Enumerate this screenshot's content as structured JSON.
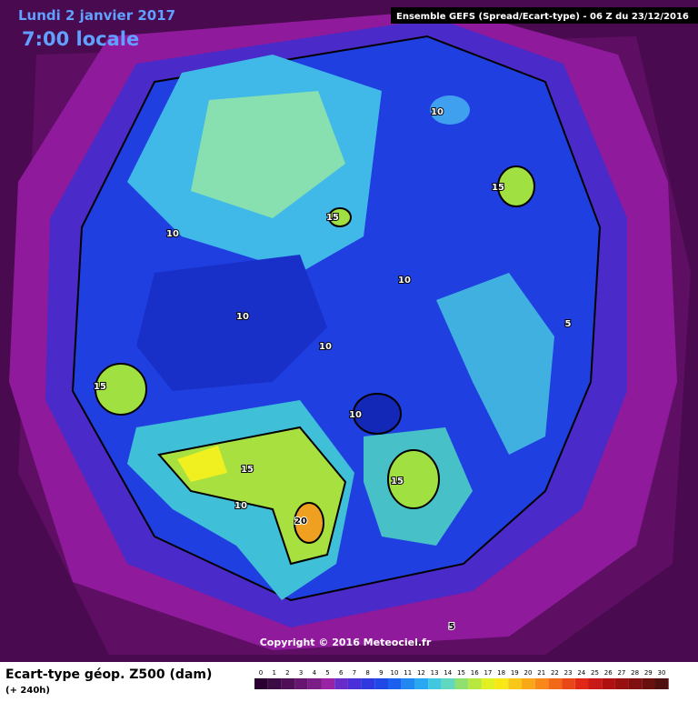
{
  "header": {
    "date": "Lundi 2 janvier 2017",
    "time": "7:00 locale",
    "run": "Ensemble GEFS  (Spread/Ecart-type) - 06 Z du 23/12/2016"
  },
  "copyright": "Copyright © 2016 Meteociel.fr",
  "legend": {
    "title": "Ecart-type géop. Z500 (dam)",
    "subtitle": "(+ 240h)",
    "labels": [
      0,
      1,
      2,
      3,
      4,
      5,
      6,
      7,
      8,
      9,
      10,
      11,
      12,
      13,
      14,
      15,
      16,
      17,
      18,
      19,
      20,
      21,
      22,
      23,
      24,
      25,
      26,
      27,
      28,
      29,
      30
    ],
    "colors": [
      "#2a0030",
      "#3c0a44",
      "#501058",
      "#66166e",
      "#7c1c86",
      "#9a22a4",
      "#6a2cc8",
      "#4a30d8",
      "#3038e0",
      "#2048e8",
      "#1c60f0",
      "#2088f0",
      "#28a8f0",
      "#40c8e0",
      "#60d8c0",
      "#90e070",
      "#b8e840",
      "#e0f020",
      "#f8e818",
      "#f8c818",
      "#f8a818",
      "#f88818",
      "#f06818",
      "#e84818",
      "#e02818",
      "#c81818",
      "#b01010",
      "#981010",
      "#801010",
      "#681010",
      "#501010"
    ]
  },
  "contour_labels": [
    "10",
    "15",
    "15",
    "10",
    "10",
    "10",
    "5",
    "10",
    "15",
    "10",
    "15",
    "15",
    "10",
    "20",
    "5"
  ]
}
